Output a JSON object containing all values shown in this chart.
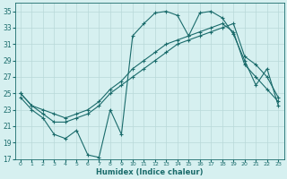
{
  "title": "",
  "xlabel": "Humidex (Indice chaleur)",
  "background_color": "#d6f0f0",
  "grid_color": "#b8d8d8",
  "line_color": "#1a6b6b",
  "xlim": [
    -0.5,
    23.5
  ],
  "ylim": [
    17,
    36
  ],
  "yticks": [
    17,
    19,
    21,
    23,
    25,
    27,
    29,
    31,
    33,
    35
  ],
  "xticks": [
    0,
    1,
    2,
    3,
    4,
    5,
    6,
    7,
    8,
    9,
    10,
    11,
    12,
    13,
    14,
    15,
    16,
    17,
    18,
    19,
    20,
    21,
    22,
    23
  ],
  "line1_x": [
    0,
    1,
    2,
    3,
    4,
    5,
    6,
    7,
    8,
    9,
    10,
    11,
    12,
    13,
    14,
    15,
    16,
    17,
    18,
    19,
    20,
    21,
    22,
    23
  ],
  "line1_y": [
    24.5,
    23.0,
    22.0,
    20.0,
    19.5,
    20.5,
    17.5,
    17.2,
    23.0,
    20.0,
    32.0,
    33.5,
    34.8,
    35.0,
    34.5,
    32.0,
    34.8,
    35.0,
    34.2,
    32.2,
    29.0,
    26.0,
    28.0,
    23.5
  ],
  "line2_x": [
    0,
    1,
    2,
    3,
    4,
    5,
    6,
    7,
    8,
    9,
    10,
    11,
    12,
    13,
    14,
    15,
    16,
    17,
    18,
    19,
    20,
    21,
    22,
    23
  ],
  "line2_y": [
    25.0,
    23.5,
    23.0,
    22.5,
    22.0,
    22.5,
    23.0,
    24.0,
    25.5,
    26.5,
    28.0,
    29.0,
    30.0,
    31.0,
    31.5,
    32.0,
    32.5,
    33.0,
    33.5,
    32.5,
    28.5,
    27.0,
    25.5,
    24.0
  ],
  "line3_x": [
    0,
    1,
    2,
    3,
    4,
    5,
    6,
    7,
    8,
    9,
    10,
    11,
    12,
    13,
    14,
    15,
    16,
    17,
    18,
    19,
    20,
    21,
    22,
    23
  ],
  "line3_y": [
    25.0,
    23.5,
    22.5,
    21.5,
    21.5,
    22.0,
    22.5,
    23.5,
    25.0,
    26.0,
    27.0,
    28.0,
    29.0,
    30.0,
    31.0,
    31.5,
    32.0,
    32.5,
    33.0,
    33.5,
    29.5,
    28.5,
    27.0,
    24.5
  ]
}
